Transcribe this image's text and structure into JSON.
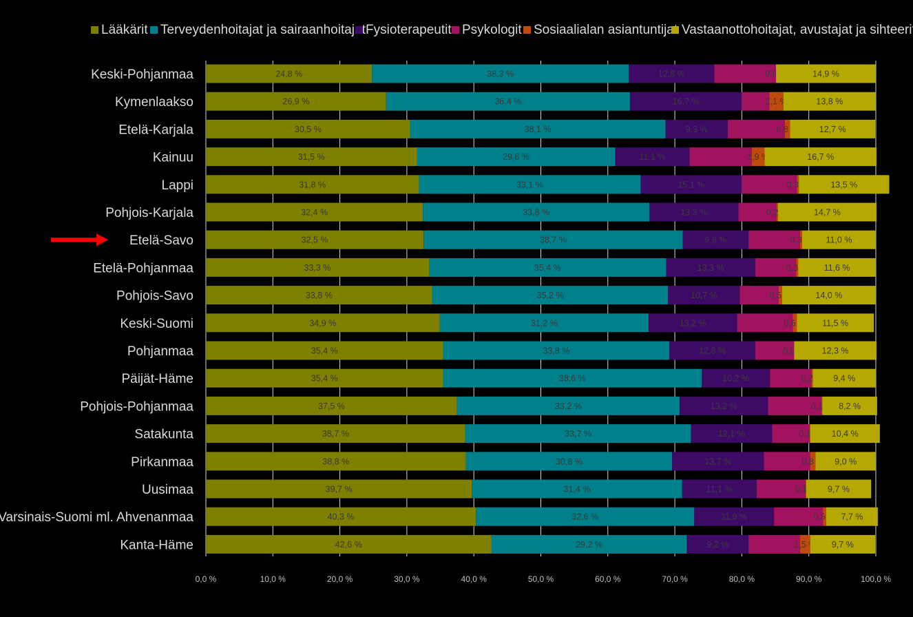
{
  "colors": {
    "background": "#000000",
    "gridline": "#d9d9d9",
    "arrow": "#ff0000"
  },
  "highlight_icon": "right-arrow-icon",
  "chart_data": {
    "type": "bar",
    "orientation": "horizontal",
    "stacked": true,
    "percent": true,
    "title": "",
    "xlabel": "",
    "ylabel": "",
    "xlim": [
      0,
      100
    ],
    "x_ticks": [
      0,
      10,
      20,
      30,
      40,
      50,
      60,
      70,
      80,
      90,
      100
    ],
    "x_tick_labels": [
      "0,0 %",
      "10,0 %",
      "20,0 %",
      "30,0 %",
      "40,0 %",
      "50,0 %",
      "60,0 %",
      "70,0 %",
      "80,0 %",
      "90,0 %",
      "100,0 %"
    ],
    "grid": true,
    "legend_position": "top",
    "highlighted_category": "Etelä-Savo",
    "categories": [
      "Keski-Pohjanmaa",
      "Kymenlaakso",
      "Etelä-Karjala",
      "Kainuu",
      "Lappi",
      "Pohjois-Karjala",
      "Etelä-Savo",
      "Etelä-Pohjanmaa",
      "Pohjois-Savo",
      "Keski-Suomi",
      "Pohjanmaa",
      "Päijät-Häme",
      "Pohjois-Pohjanmaa",
      "Satakunta",
      "Pirkanmaa",
      "Uusimaa",
      "Varsinais-Suomi ml. Ahvenanmaa",
      "Kanta-Häme"
    ],
    "series": [
      {
        "name": "Lääkärit",
        "color": "#7f7f00",
        "labels_visible": true,
        "values": [
          24.8,
          26.9,
          30.5,
          31.5,
          31.8,
          32.4,
          32.5,
          33.3,
          33.8,
          34.9,
          35.4,
          35.4,
          37.5,
          38.7,
          38.8,
          39.7,
          40.3,
          42.6
        ],
        "labels": [
          "24,8 %",
          "26,9 %",
          "30,5 %",
          "31,5 %",
          "31,8 %",
          "32,4 %",
          "32,5 %",
          "33,3 %",
          "33,8 %",
          "34,9 %",
          "35,4 %",
          "35,4 %",
          "37,5 %",
          "38,7 %",
          "38,8 %",
          "39,7 %",
          "40,3 %",
          "42,6 %"
        ]
      },
      {
        "name": "Terveydenhoitajat ja sairaanhoitajat",
        "color": "#00808a",
        "labels_visible": true,
        "values": [
          38.3,
          36.4,
          38.1,
          29.6,
          33.1,
          33.8,
          38.7,
          35.4,
          35.2,
          31.2,
          33.8,
          38.6,
          33.2,
          33.7,
          30.8,
          31.4,
          32.6,
          29.2
        ],
        "labels": [
          "38,3 %",
          "36,4 %",
          "38,1 %",
          "29,6 %",
          "33,1 %",
          "33,8 %",
          "38,7 %",
          "35,4 %",
          "35,2 %",
          "31,2 %",
          "33,8 %",
          "38,6 %",
          "33,2 %",
          "33,7 %",
          "30,8 %",
          "31,4 %",
          "32,6 %",
          "29,2 %"
        ]
      },
      {
        "name": "Fysioterapeutit",
        "color": "#3d0a66",
        "labels_visible": true,
        "values": [
          12.8,
          16.7,
          9.3,
          11.1,
          15.1,
          13.3,
          9.8,
          13.3,
          10.7,
          13.2,
          12.8,
          10.2,
          13.2,
          12.1,
          13.7,
          11.1,
          11.9,
          9.2
        ],
        "labels": [
          "12,8 %",
          "16,7 %",
          "9,3 %",
          "11,1 %",
          "15,1 %",
          "13,3 %",
          "9,8 %",
          "13,3 %",
          "10,7 %",
          "13,2 %",
          "12,8 %",
          "10,2 %",
          "13,2 %",
          "12,1 %",
          "13,7 %",
          "11,1 %",
          "11,9 %",
          "9,2 %"
        ]
      },
      {
        "name": "Psykologit",
        "color": "#a3125e",
        "labels_visible": false,
        "values": [
          9.2,
          4.1,
          8.5,
          9.3,
          8.2,
          5.7,
          7.7,
          6.1,
          5.8,
          8.3,
          5.8,
          6.2,
          8.0,
          5.6,
          6.9,
          7.3,
          7.3,
          7.7
        ],
        "labels": []
      },
      {
        "name": "Sosiaalialan asiantuntijat",
        "color": "#c04a0c",
        "labels_visible": true,
        "values": [
          0.0,
          2.1,
          0.8,
          1.9,
          0.3,
          0.2,
          0.3,
          0.3,
          0.5,
          0.6,
          0.0,
          0.2,
          0.1,
          0.1,
          0.8,
          0.1,
          0.5,
          1.5
        ],
        "labels": [
          "0,0 %",
          "2,1 %",
          "0,8 %",
          "1,9 %",
          "0,3 %",
          "0,2 %",
          "0,3 %",
          "0,3 %",
          "0,5 %",
          "0,6 %",
          "0,0 %",
          "0,2 %",
          "0,1 %",
          "0,1 %",
          "0,8 %",
          "0,1 %",
          "0,5 %",
          "1,5 %"
        ]
      },
      {
        "name": "Vastaanottohoitajat, avustajat ja sihteerit",
        "color": "#b5a800",
        "labels_visible": true,
        "values": [
          14.9,
          13.8,
          12.7,
          16.7,
          13.5,
          14.7,
          11.0,
          11.6,
          14.0,
          11.5,
          12.3,
          9.4,
          8.2,
          10.4,
          9.0,
          9.7,
          7.7,
          9.7
        ],
        "labels": [
          "14,9 %",
          "13,8 %",
          "12,7 %",
          "16,7 %",
          "13,5 %",
          "14,7 %",
          "11,0 %",
          "11,6 %",
          "14,0 %",
          "11,5 %",
          "12,3 %",
          "9,4 %",
          "8,2 %",
          "10,4 %",
          "9,0 %",
          "9,7 %",
          "7,7 %",
          "9,7 %"
        ]
      }
    ]
  }
}
